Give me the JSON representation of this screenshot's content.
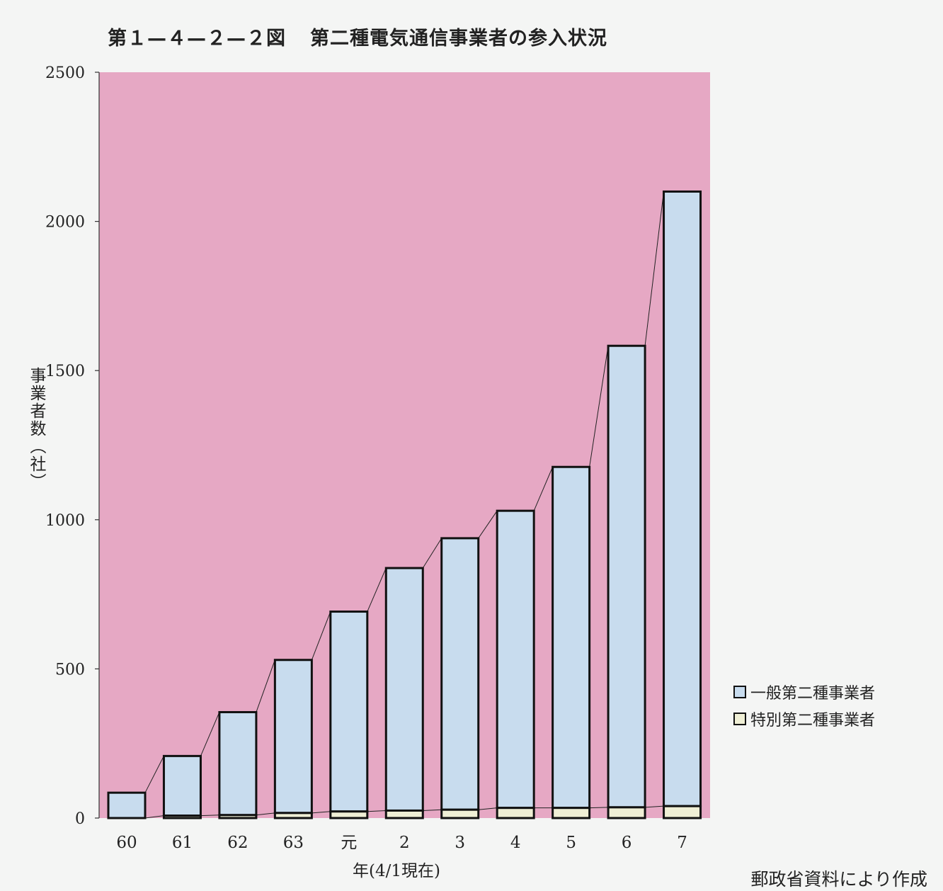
{
  "title": {
    "figure_no": "第１—４—２—２図",
    "text": "第二種電気通信事業者の参入状況"
  },
  "source_note": "郵政省資料により作成",
  "colors": {
    "plot_background": "#e6a8c4",
    "general_fill": "#c8dcee",
    "special_fill": "#efefd5",
    "outline": "#111111"
  },
  "chart_data": {
    "type": "bar",
    "stacked": true,
    "xlabel": "年(4/1現在)",
    "ylabel": "事業者数（社）",
    "ylim": [
      0,
      2500
    ],
    "yticks": [
      0,
      500,
      1000,
      1500,
      2000,
      2500
    ],
    "categories": [
      "60",
      "61",
      "62",
      "63",
      "元",
      "2",
      "3",
      "4",
      "5",
      "6",
      "7"
    ],
    "series": [
      {
        "name": "特別第二種事業者",
        "color": "#efefd5",
        "values": [
          0,
          8,
          10,
          17,
          22,
          25,
          28,
          34,
          34,
          36,
          40
        ]
      },
      {
        "name": "一般第二種事業者",
        "color": "#c8dcee",
        "values": [
          85,
          200,
          345,
          513,
          670,
          813,
          910,
          996,
          1143,
          1547,
          2060
        ]
      }
    ],
    "legend_position": "right",
    "grid": false
  }
}
